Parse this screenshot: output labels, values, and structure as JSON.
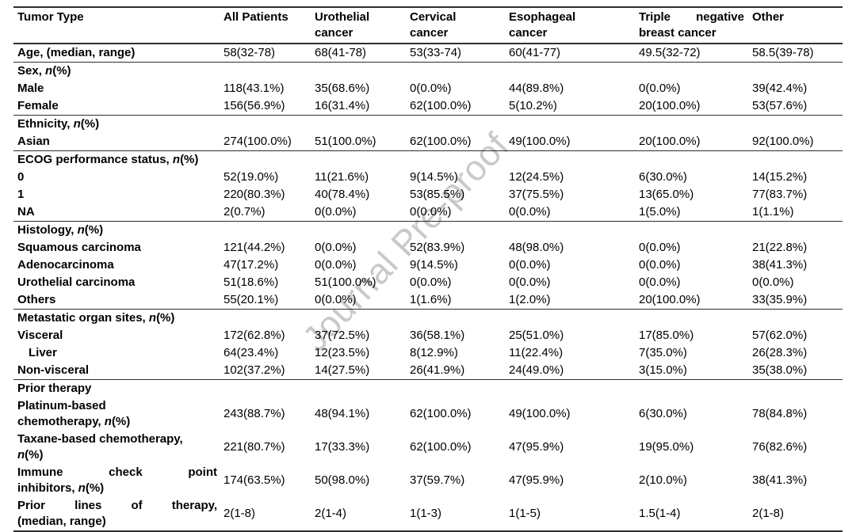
{
  "watermark": {
    "text": "Journal Pre-proof"
  },
  "table": {
    "columns": [
      {
        "label": "Tumor Type",
        "lines": [
          "Tumor Type"
        ]
      },
      {
        "label": "All Patients",
        "lines": [
          "All Patients"
        ]
      },
      {
        "label": "Urothelial cancer",
        "lines": [
          "Urothelial",
          "cancer"
        ]
      },
      {
        "label": "Cervical cancer",
        "lines": [
          "Cervical",
          "cancer"
        ]
      },
      {
        "label": "Esophageal cancer",
        "lines": [
          "Esophageal",
          "cancer"
        ]
      },
      {
        "label": "Triple negative breast cancer",
        "lines": [
          "Triple negative",
          "breast cancer"
        ],
        "justify": [
          0
        ]
      },
      {
        "label": "Other",
        "lines": [
          "Other"
        ]
      }
    ],
    "sections": [
      {
        "rows": [
          {
            "label": "Age, (median, range)",
            "values": [
              "58(32-78)",
              "68(41-78)",
              "53(33-74)",
              "60(41-77)",
              "49.5(32-72)",
              "58.5(39-78)"
            ]
          }
        ]
      },
      {
        "rows": [
          {
            "label": "Sex, n(%)",
            "header": true
          },
          {
            "label": "Male",
            "values": [
              "118(43.1%)",
              "35(68.6%)",
              "0(0.0%)",
              "44(89.8%)",
              "0(0.0%)",
              "39(42.4%)"
            ]
          },
          {
            "label": "Female",
            "values": [
              "156(56.9%)",
              "16(31.4%)",
              "62(100.0%)",
              "5(10.2%)",
              "20(100.0%)",
              "53(57.6%)"
            ]
          }
        ]
      },
      {
        "rows": [
          {
            "label": "Ethnicity, n(%)",
            "header": true
          },
          {
            "label": "Asian",
            "values": [
              "274(100.0%)",
              "51(100.0%)",
              "62(100.0%)",
              "49(100.0%)",
              "20(100.0%)",
              "92(100.0%)"
            ]
          }
        ]
      },
      {
        "rows": [
          {
            "label": "ECOG performance status, n(%)",
            "header": true
          },
          {
            "label": "0",
            "values": [
              "52(19.0%)",
              "11(21.6%)",
              "9(14.5%)",
              "12(24.5%)",
              "6(30.0%)",
              "14(15.2%)"
            ]
          },
          {
            "label": "1",
            "values": [
              "220(80.3%)",
              "40(78.4%)",
              "53(85.5%)",
              "37(75.5%)",
              "13(65.0%)",
              "77(83.7%)"
            ]
          },
          {
            "label": "NA",
            "values": [
              "2(0.7%)",
              "0(0.0%)",
              "0(0.0%)",
              "0(0.0%)",
              "1(5.0%)",
              "1(1.1%)"
            ]
          }
        ]
      },
      {
        "rows": [
          {
            "label": "Histology, n(%)",
            "header": true
          },
          {
            "label": "Squamous carcinoma",
            "values": [
              "121(44.2%)",
              "0(0.0%)",
              "52(83.9%)",
              "48(98.0%)",
              "0(0.0%)",
              "21(22.8%)"
            ]
          },
          {
            "label": "Adenocarcinoma",
            "values": [
              "47(17.2%)",
              "0(0.0%)",
              "9(14.5%)",
              "0(0.0%)",
              "0(0.0%)",
              "38(41.3%)"
            ]
          },
          {
            "label": "Urothelial carcinoma",
            "values": [
              "51(18.6%)",
              "51(100.0%)",
              "0(0.0%)",
              "0(0.0%)",
              "0(0.0%)",
              "0(0.0%)"
            ]
          },
          {
            "label": "Others",
            "values": [
              "55(20.1%)",
              "0(0.0%)",
              "1(1.6%)",
              "1(2.0%)",
              "20(100.0%)",
              "33(35.9%)"
            ]
          }
        ]
      },
      {
        "rows": [
          {
            "label": "Metastatic organ sites, n(%)",
            "header": true
          },
          {
            "label": "Visceral",
            "values": [
              "172(62.8%)",
              "37(72.5%)",
              "36(58.1%)",
              "25(51.0%)",
              "17(85.0%)",
              "57(62.0%)"
            ]
          },
          {
            "label": "Liver",
            "indent": true,
            "values": [
              "64(23.4%)",
              "12(23.5%)",
              "8(12.9%)",
              "11(22.4%)",
              "7(35.0%)",
              "26(28.3%)"
            ]
          },
          {
            "label": "Non-visceral",
            "values": [
              "102(37.2%)",
              "14(27.5%)",
              "26(41.9%)",
              "24(49.0%)",
              "3(15.0%)",
              "35(38.0%)"
            ]
          }
        ]
      },
      {
        "rows": [
          {
            "label": "Prior therapy",
            "header": true
          },
          {
            "label": "Platinum-based chemotherapy, n(%)",
            "lines": [
              "Platinum-based",
              "chemotherapy, n(%)"
            ],
            "values": [
              "243(88.7%)",
              "48(94.1%)",
              "62(100.0%)",
              "49(100.0%)",
              "6(30.0%)",
              "78(84.8%)"
            ]
          },
          {
            "label": "Taxane-based chemotherapy, n(%)",
            "lines": [
              "Taxane-based chemotherapy,",
              "n(%)"
            ],
            "values": [
              "221(80.7%)",
              "17(33.3%)",
              "62(100.0%)",
              "47(95.9%)",
              "19(95.0%)",
              "76(82.6%)"
            ]
          },
          {
            "label": "Immune check point inhibitors, n(%)",
            "lines": [
              "Immune check point",
              "inhibitors, n(%)"
            ],
            "justify": [
              0
            ],
            "values": [
              "174(63.5%)",
              "50(98.0%)",
              "37(59.7%)",
              "47(95.9%)",
              "2(10.0%)",
              "38(41.3%)"
            ]
          },
          {
            "label": "Prior lines of therapy, (median, range)",
            "lines": [
              "Prior lines of therapy,",
              "(median, range)"
            ],
            "justify": [
              0
            ],
            "values": [
              "2(1-8)",
              "2(1-4)",
              "1(1-3)",
              "1(1-5)",
              "1.5(1-4)",
              "2(1-8)"
            ]
          }
        ]
      }
    ]
  }
}
